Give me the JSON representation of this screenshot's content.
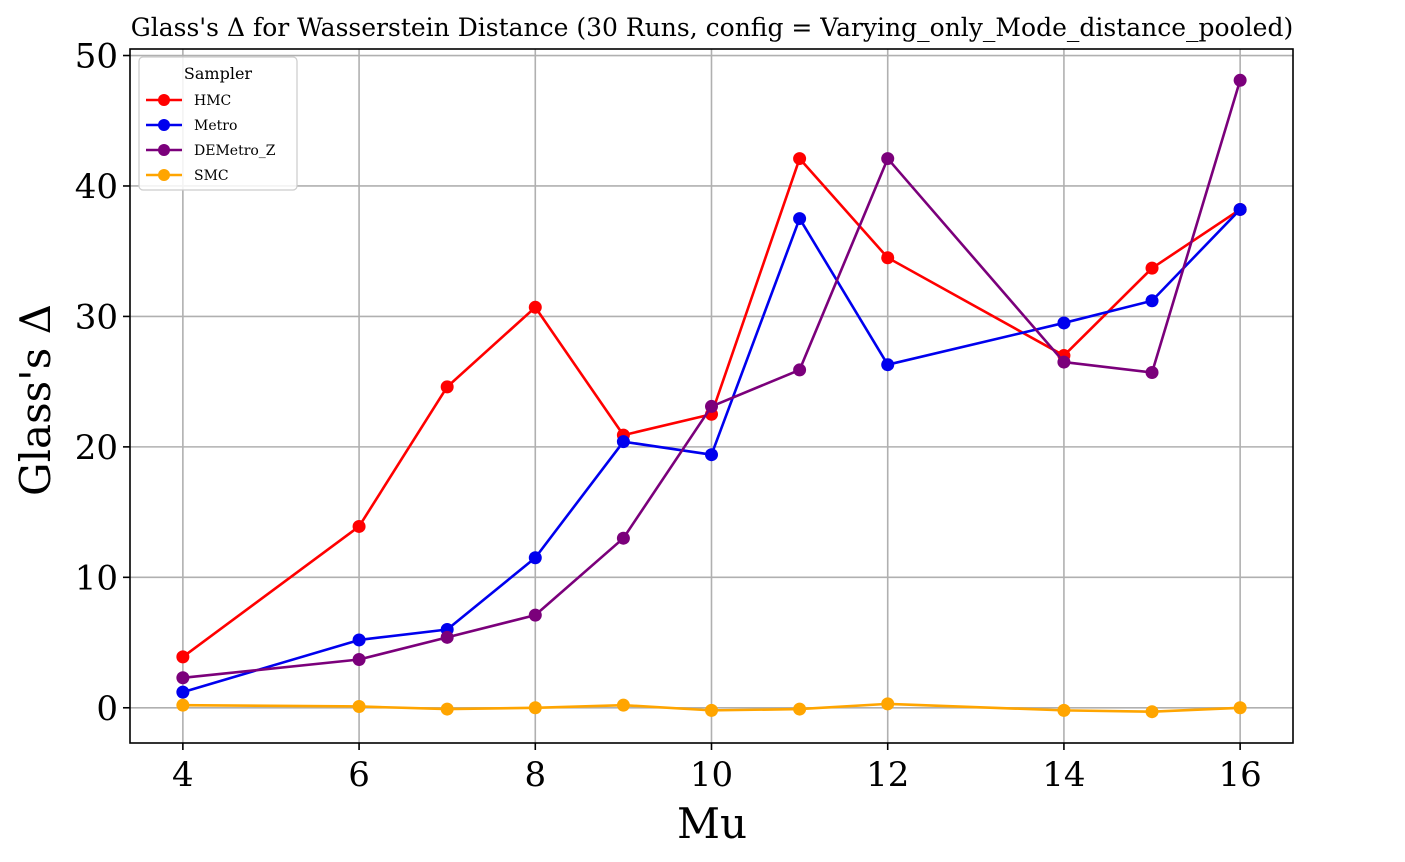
{
  "chart_data": {
    "type": "line",
    "title": "Glass's Δ for Wasserstein Distance (30 Runs, config = Varying_only_Mode_distance_pooled)",
    "xlabel": "Mu",
    "ylabel": "Glass's Δ",
    "xlim": [
      3.4,
      16.6
    ],
    "ylim": [
      -2.7,
      50.5
    ],
    "x_ticks": [
      4,
      6,
      8,
      10,
      12,
      14,
      16
    ],
    "y_ticks": [
      0,
      10,
      20,
      30,
      40,
      50
    ],
    "grid": true,
    "legend": {
      "title": "Sampler",
      "position": "top-left"
    },
    "x": [
      4,
      6,
      7,
      8,
      9,
      10,
      11,
      12,
      14,
      15,
      16
    ],
    "series": [
      {
        "name": "HMC",
        "color": "#ff0000",
        "values": [
          3.9,
          13.9,
          24.6,
          30.7,
          20.9,
          22.5,
          42.1,
          34.5,
          27.0,
          33.7,
          38.2
        ]
      },
      {
        "name": "Metro",
        "color": "#0000ee",
        "values": [
          1.2,
          5.2,
          6.0,
          11.5,
          20.4,
          19.4,
          37.5,
          26.3,
          29.5,
          31.2,
          38.2
        ]
      },
      {
        "name": "DEMetro_Z",
        "color": "#7b007b",
        "values": [
          2.3,
          3.7,
          5.4,
          7.1,
          13.0,
          23.1,
          25.9,
          42.1,
          26.5,
          25.7,
          48.1
        ]
      },
      {
        "name": "SMC",
        "color": "#ffa500",
        "values": [
          0.2,
          0.1,
          -0.1,
          0.0,
          0.2,
          -0.2,
          -0.1,
          0.3,
          -0.2,
          -0.3,
          0.0
        ]
      }
    ]
  }
}
